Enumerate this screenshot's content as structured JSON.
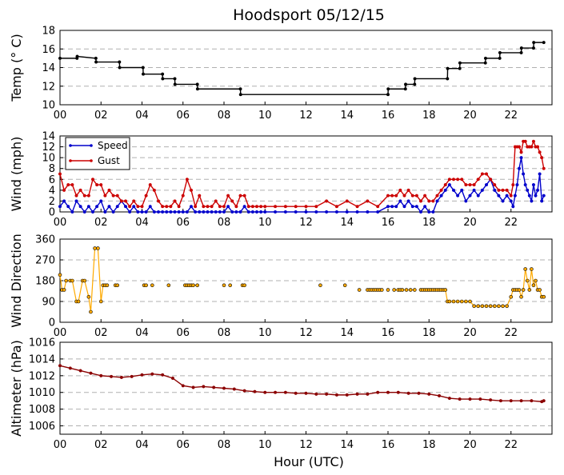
{
  "figure": {
    "title": "Hoodsport 05/12/15",
    "xlabel": "Hour (UTC)"
  },
  "chart_data": [
    {
      "type": "line",
      "ylabel": "Temp ($^\\circ$C)",
      "ylabel_display": "Temp (° C)",
      "xlim": [
        0,
        24
      ],
      "ylim": [
        10,
        18
      ],
      "yticks": [
        "10",
        "12",
        "14",
        "16",
        "18"
      ],
      "xticks": [
        "00",
        "02",
        "04",
        "06",
        "08",
        "10",
        "12",
        "14",
        "16",
        "18",
        "20",
        "22"
      ],
      "grid": true,
      "series": [
        {
          "color": "#000000",
          "marker": "dot",
          "x": [
            0.0,
            0.83,
            0.84,
            1.75,
            1.76,
            2.9,
            2.91,
            4.05,
            4.06,
            5.0,
            5.01,
            5.6,
            5.61,
            6.7,
            6.71,
            8.8,
            8.81,
            16.0,
            16.01,
            16.85,
            16.86,
            17.3,
            17.31,
            18.9,
            18.91,
            19.5,
            19.51,
            20.75,
            20.76,
            21.45,
            21.46,
            22.5,
            22.51,
            23.1,
            23.11,
            23.6
          ],
          "values": [
            15.0,
            15.0,
            15.2,
            15.0,
            14.6,
            14.6,
            14.0,
            14.0,
            13.3,
            13.3,
            12.8,
            12.8,
            12.2,
            12.2,
            11.7,
            11.7,
            11.1,
            11.1,
            11.7,
            11.7,
            12.2,
            12.2,
            12.8,
            12.8,
            13.9,
            13.9,
            14.5,
            14.5,
            15.0,
            15.0,
            15.6,
            15.6,
            16.1,
            16.1,
            16.7,
            16.7
          ]
        }
      ]
    },
    {
      "type": "line",
      "ylabel": "Wind (mph)",
      "xlim": [
        0,
        24
      ],
      "ylim": [
        0,
        14
      ],
      "yticks": [
        "0",
        "2",
        "4",
        "6",
        "8",
        "10",
        "12",
        "14"
      ],
      "xticks": [
        "00",
        "02",
        "04",
        "06",
        "08",
        "10",
        "12",
        "14",
        "16",
        "18",
        "20",
        "22"
      ],
      "grid": true,
      "legend": "upper-left",
      "series": [
        {
          "name": "Speed",
          "color": "#0000cc",
          "x": [
            0.0,
            0.2,
            0.4,
            0.6,
            0.8,
            1.0,
            1.2,
            1.4,
            1.6,
            1.8,
            2.0,
            2.2,
            2.4,
            2.6,
            2.8,
            3.0,
            3.2,
            3.4,
            3.6,
            3.8,
            4.0,
            4.2,
            4.4,
            4.6,
            4.8,
            5.0,
            5.2,
            5.4,
            5.6,
            5.8,
            6.0,
            6.2,
            6.4,
            6.6,
            6.8,
            7.0,
            7.2,
            7.4,
            7.6,
            7.8,
            8.0,
            8.2,
            8.4,
            8.6,
            8.8,
            9.0,
            9.2,
            9.4,
            9.6,
            9.8,
            10.0,
            10.5,
            11.0,
            11.5,
            12.0,
            12.5,
            13.0,
            13.5,
            14.0,
            14.5,
            15.0,
            15.5,
            16.0,
            16.2,
            16.4,
            16.6,
            16.8,
            17.0,
            17.2,
            17.4,
            17.6,
            17.8,
            18.0,
            18.2,
            18.4,
            18.6,
            18.8,
            19.0,
            19.2,
            19.4,
            19.6,
            19.8,
            20.0,
            20.2,
            20.4,
            20.6,
            20.8,
            21.0,
            21.2,
            21.4,
            21.6,
            21.8,
            22.0,
            22.1,
            22.2,
            22.3,
            22.4,
            22.5,
            22.6,
            22.7,
            22.8,
            22.9,
            23.0,
            23.1,
            23.2,
            23.3,
            23.4,
            23.5,
            23.6
          ],
          "values": [
            1,
            2,
            1,
            0,
            2,
            1,
            0,
            1,
            0,
            1,
            2,
            0,
            1,
            0,
            1,
            2,
            1,
            0,
            1,
            0,
            0,
            0,
            1,
            0,
            0,
            0,
            0,
            0,
            0,
            0,
            0,
            0,
            1,
            0,
            0,
            0,
            0,
            0,
            0,
            0,
            0,
            1,
            0,
            0,
            0,
            1,
            0,
            0,
            0,
            0,
            0,
            0,
            0,
            0,
            0,
            0,
            0,
            0,
            0,
            0,
            0,
            0,
            1,
            1,
            1,
            2,
            1,
            2,
            1,
            1,
            0,
            1,
            0,
            0,
            2,
            3,
            4,
            5,
            4,
            3,
            4,
            2,
            3,
            4,
            3,
            4,
            5,
            6,
            4,
            3,
            2,
            3,
            2,
            1,
            3,
            5,
            8,
            10,
            7,
            5,
            4,
            3,
            2,
            5,
            3,
            4,
            7,
            2,
            3
          ]
        },
        {
          "name": "Gust",
          "color": "#cc0000",
          "x": [
            0.0,
            0.2,
            0.4,
            0.6,
            0.8,
            1.0,
            1.2,
            1.4,
            1.6,
            1.8,
            2.0,
            2.2,
            2.4,
            2.6,
            2.8,
            3.0,
            3.2,
            3.4,
            3.6,
            3.8,
            4.0,
            4.2,
            4.4,
            4.6,
            4.8,
            5.0,
            5.2,
            5.4,
            5.6,
            5.8,
            6.0,
            6.2,
            6.4,
            6.6,
            6.8,
            7.0,
            7.2,
            7.4,
            7.6,
            7.8,
            8.0,
            8.2,
            8.4,
            8.6,
            8.8,
            9.0,
            9.2,
            9.4,
            9.6,
            9.8,
            10.0,
            10.5,
            11.0,
            11.5,
            12.0,
            12.5,
            13.0,
            13.5,
            14.0,
            14.5,
            15.0,
            15.5,
            16.0,
            16.2,
            16.4,
            16.6,
            16.8,
            17.0,
            17.2,
            17.4,
            17.6,
            17.8,
            18.0,
            18.2,
            18.4,
            18.6,
            18.8,
            19.0,
            19.2,
            19.4,
            19.6,
            19.8,
            20.0,
            20.2,
            20.4,
            20.6,
            20.8,
            21.0,
            21.2,
            21.4,
            21.6,
            21.8,
            22.0,
            22.1,
            22.2,
            22.3,
            22.4,
            22.5,
            22.6,
            22.7,
            22.8,
            22.9,
            23.0,
            23.1,
            23.2,
            23.3,
            23.4,
            23.5,
            23.6
          ],
          "values": [
            7,
            4,
            5,
            5,
            3,
            4,
            3,
            3,
            6,
            5,
            5,
            3,
            4,
            3,
            3,
            2,
            2,
            1,
            2,
            1,
            1,
            3,
            5,
            4,
            2,
            1,
            1,
            1,
            2,
            1,
            3,
            6,
            4,
            1,
            3,
            1,
            1,
            1,
            2,
            1,
            1,
            3,
            2,
            1,
            3,
            3,
            1,
            1,
            1,
            1,
            1,
            1,
            1,
            1,
            1,
            1,
            2,
            1,
            2,
            1,
            2,
            1,
            3,
            3,
            3,
            4,
            3,
            4,
            3,
            3,
            2,
            3,
            2,
            2,
            3,
            4,
            5,
            6,
            6,
            6,
            6,
            5,
            5,
            5,
            6,
            7,
            7,
            6,
            5,
            4,
            4,
            4,
            3,
            5,
            12,
            12,
            12,
            11,
            13,
            13,
            12,
            12,
            12,
            13,
            12,
            12,
            11,
            10,
            8
          ]
        }
      ]
    },
    {
      "type": "scatter",
      "ylabel": "Wind Direction",
      "xlim": [
        0,
        24
      ],
      "ylim": [
        0,
        360
      ],
      "yticks": [
        "0",
        "90",
        "180",
        "270",
        "360"
      ],
      "xticks": [
        "00",
        "02",
        "04",
        "06",
        "08",
        "10",
        "12",
        "14",
        "16",
        "18",
        "20",
        "22"
      ],
      "grid": true,
      "series": [
        {
          "color": "#e6a000",
          "x": [
            0.0,
            0.1,
            0.2,
            0.3,
            0.5,
            0.6,
            0.8,
            0.9,
            1.1,
            1.2,
            1.4,
            1.5,
            1.7,
            1.85,
            2.0,
            2.1,
            2.2,
            2.3,
            2.7,
            2.8,
            4.1,
            4.2,
            4.5,
            5.3,
            6.1,
            6.2,
            6.3,
            6.4,
            6.5,
            6.7,
            8.0,
            8.3,
            8.9,
            9.0,
            12.7,
            13.9,
            14.6,
            15.0,
            15.1,
            15.2,
            15.3,
            15.4,
            15.5,
            15.6,
            15.7,
            16.0,
            16.3,
            16.5,
            16.6,
            16.7,
            16.9,
            17.1,
            17.3,
            17.6,
            17.7,
            17.8,
            17.9,
            18.0,
            18.1,
            18.2,
            18.3,
            18.4,
            18.5,
            18.6,
            18.7,
            18.8,
            18.9,
            19.0,
            19.2,
            19.4,
            19.6,
            19.8,
            20.0,
            20.2,
            20.4,
            20.6,
            20.8,
            21.0,
            21.2,
            21.4,
            21.6,
            21.8,
            22.0,
            22.1,
            22.2,
            22.3,
            22.4,
            22.5,
            22.6,
            22.7,
            22.8,
            22.9,
            23.0,
            23.1,
            23.2,
            23.3,
            23.4,
            23.5,
            23.6
          ],
          "values": [
            205,
            140,
            140,
            180,
            180,
            180,
            90,
            90,
            180,
            180,
            110,
            45,
            320,
            320,
            90,
            160,
            160,
            160,
            160,
            160,
            160,
            160,
            160,
            160,
            160,
            160,
            160,
            160,
            160,
            160,
            160,
            160,
            160,
            160,
            160,
            160,
            140,
            140,
            140,
            140,
            140,
            140,
            140,
            140,
            140,
            140,
            140,
            140,
            140,
            140,
            140,
            140,
            140,
            140,
            140,
            140,
            140,
            140,
            140,
            140,
            140,
            140,
            140,
            140,
            140,
            140,
            90,
            90,
            90,
            90,
            90,
            90,
            90,
            70,
            70,
            70,
            70,
            70,
            70,
            70,
            70,
            70,
            110,
            140,
            140,
            140,
            140,
            110,
            140,
            230,
            180,
            140,
            230,
            160,
            180,
            140,
            140,
            110,
            110
          ]
        }
      ]
    },
    {
      "type": "line",
      "ylabel": "Altimeter (hPa)",
      "xlim": [
        0,
        24
      ],
      "ylim": [
        1005,
        1016
      ],
      "yticks": [
        "1006",
        "1008",
        "1010",
        "1012",
        "1014",
        "1016"
      ],
      "xticks": [
        "00",
        "02",
        "04",
        "06",
        "08",
        "10",
        "12",
        "14",
        "16",
        "18",
        "20",
        "22"
      ],
      "grid": true,
      "series": [
        {
          "color": "#8b0000",
          "x": [
            0.0,
            0.5,
            1.0,
            1.5,
            2.0,
            2.5,
            3.0,
            3.5,
            4.0,
            4.5,
            5.0,
            5.5,
            6.0,
            6.5,
            7.0,
            7.5,
            8.0,
            8.5,
            9.0,
            9.5,
            10.0,
            10.5,
            11.0,
            11.5,
            12.0,
            12.5,
            13.0,
            13.5,
            14.0,
            14.5,
            15.0,
            15.5,
            16.0,
            16.5,
            17.0,
            17.5,
            18.0,
            18.5,
            19.0,
            19.5,
            20.0,
            20.5,
            21.0,
            21.5,
            22.0,
            22.5,
            23.0,
            23.5,
            23.6
          ],
          "values": [
            1013.2,
            1012.9,
            1012.6,
            1012.3,
            1012.0,
            1011.9,
            1011.8,
            1011.9,
            1012.1,
            1012.2,
            1012.1,
            1011.7,
            1010.8,
            1010.6,
            1010.7,
            1010.6,
            1010.5,
            1010.4,
            1010.2,
            1010.1,
            1010.0,
            1010.0,
            1010.0,
            1009.9,
            1009.9,
            1009.8,
            1009.8,
            1009.7,
            1009.7,
            1009.8,
            1009.8,
            1010.0,
            1010.0,
            1010.0,
            1009.9,
            1009.9,
            1009.8,
            1009.6,
            1009.3,
            1009.2,
            1009.2,
            1009.2,
            1009.1,
            1009.0,
            1009.0,
            1009.0,
            1009.0,
            1008.9,
            1009.0
          ]
        }
      ]
    }
  ]
}
